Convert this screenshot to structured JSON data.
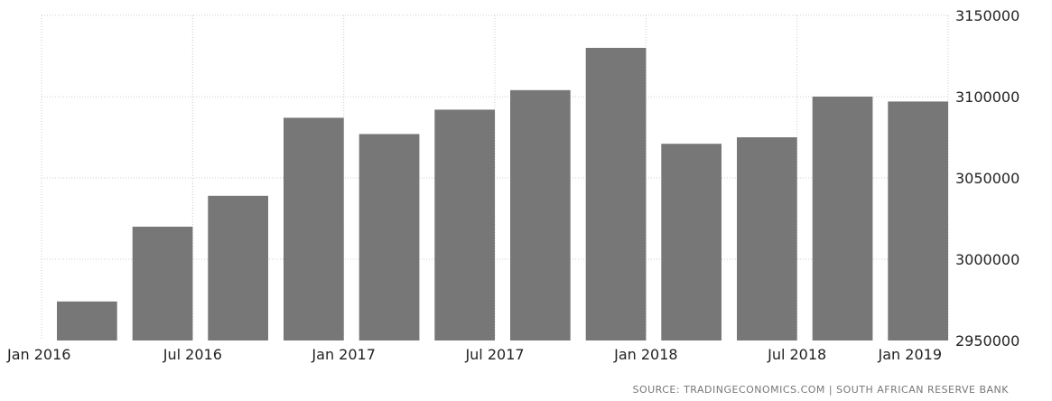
{
  "chart_data": {
    "type": "bar",
    "title": "",
    "xlabel": "",
    "ylabel": "",
    "categories": [
      "Q1 2016",
      "Q2 2016",
      "Q3 2016",
      "Q4 2016",
      "Q1 2017",
      "Q2 2017",
      "Q3 2017",
      "Q4 2017",
      "Q1 2018",
      "Q2 2018",
      "Q3 2018",
      "Q4 2018"
    ],
    "values": [
      2974000,
      3020000,
      3039000,
      3087000,
      3077000,
      3092000,
      3104000,
      3130000,
      3071000,
      3075000,
      3100000,
      3097000
    ],
    "x_tick_labels": [
      "Jan 2016",
      "Jul 2016",
      "Jan 2017",
      "Jul 2017",
      "Jan 2018",
      "Jul 2018",
      "Jan 2019"
    ],
    "y_tick_labels": [
      "2950000",
      "3000000",
      "3050000",
      "3100000",
      "3150000"
    ],
    "ylim": [
      2950000,
      3150000
    ],
    "y_axis_position": "right",
    "grid": true,
    "bar_color": "#777777",
    "grid_color": "#cccccc"
  },
  "source": "SOURCE: TRADINGECONOMICS.COM | SOUTH AFRICAN RESERVE BANK"
}
